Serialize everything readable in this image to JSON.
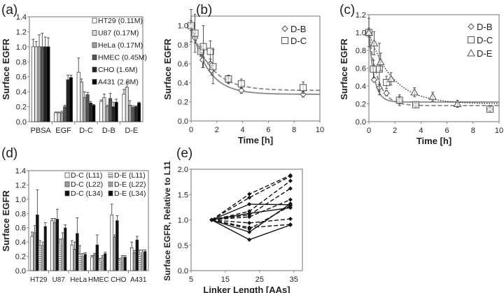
{
  "chart_data": [
    {
      "id": "a",
      "type": "bar",
      "panel_label": "(a)",
      "ylabel": "Surface EGFR",
      "ylim": [
        0,
        1.4
      ],
      "yticks": [
        "0.0",
        "0.2",
        "0.4",
        "0.6",
        "0.8",
        "1.0",
        "1.2",
        "1.4"
      ],
      "categories": [
        "PBSA",
        "EGF",
        "D-C",
        "D-B",
        "D-E"
      ],
      "series": [
        {
          "name": "HT29 (0.11M)",
          "color": "#ffffff",
          "values": [
            1.0,
            0.12,
            0.66,
            0.27,
            0.37
          ],
          "errors": [
            0.1,
            0.01,
            0.19,
            0.02,
            0.06
          ]
        },
        {
          "name": "U87 (0.17M)",
          "color": "#dcdcdc",
          "values": [
            1.0,
            0.12,
            0.53,
            0.32,
            0.46
          ],
          "errors": [
            0.07,
            0.01,
            0.04,
            0.05,
            0.07
          ]
        },
        {
          "name": "HeLa (0.17M)",
          "color": "#a0a0a0",
          "values": [
            1.0,
            0.12,
            0.32,
            0.2,
            0.22
          ],
          "errors": [
            0.16,
            0.02,
            0.08,
            0.02,
            0.06
          ]
        },
        {
          "name": "HMEC (0.45M)",
          "color": "#555555",
          "values": [
            1.0,
            0.2,
            0.36,
            0.31,
            0.19
          ],
          "errors": [
            0.18,
            0.02,
            0.03,
            0.07,
            0.02
          ]
        },
        {
          "name": "CHO (1.6M)",
          "color": "#222222",
          "values": [
            1.0,
            0.56,
            0.25,
            0.2,
            0.2
          ],
          "errors": [
            0.13,
            0.06,
            0.02,
            0.06,
            0.01
          ]
        },
        {
          "name": "A431 (2.8M)",
          "color": "#000000",
          "values": [
            1.0,
            0.59,
            0.22,
            0.26,
            0.25
          ],
          "errors": [
            0.12,
            0.03,
            0.01,
            0.04,
            0.01
          ]
        }
      ]
    },
    {
      "id": "b",
      "type": "scatter",
      "panel_label": "(b)",
      "xlabel": "Time [h]",
      "ylabel": "Surface EGFR",
      "xlim": [
        0,
        10
      ],
      "ylim": [
        0,
        1.1
      ],
      "xticks": [
        "0",
        "2",
        "4",
        "6",
        "8",
        "10"
      ],
      "yticks": [
        "0.0",
        "0.2",
        "0.4",
        "0.6",
        "0.8",
        "1.0"
      ],
      "series": [
        {
          "name": "D-B",
          "marker": "diamond",
          "x": [
            0,
            0.3,
            0.8,
            0.9,
            1.5,
            1.6,
            2.9,
            3.9,
            8.7
          ],
          "y": [
            1.0,
            0.87,
            0.74,
            0.64,
            0.6,
            0.53,
            0.43,
            0.32,
            0.28
          ],
          "errors": [
            0.05,
            0.05,
            0.05,
            0.08,
            0.05,
            0.05,
            0.04,
            0.03,
            0.03
          ],
          "fit": {
            "style": "solid",
            "plateau": 0.28,
            "tau": 1.3
          }
        },
        {
          "name": "D-C",
          "marker": "square",
          "x": [
            0,
            0.3,
            0.75,
            0.95,
            1.5,
            1.7,
            2.9,
            3.9,
            8.7
          ],
          "y": [
            1.0,
            0.92,
            0.73,
            0.78,
            0.73,
            0.57,
            0.44,
            0.39,
            0.35
          ],
          "errors": [
            0.17,
            0.2,
            0.05,
            0.22,
            0.11,
            0.18,
            0.04,
            0.05,
            0.06
          ],
          "fit": {
            "style": "dashed",
            "plateau": 0.32,
            "tau": 1.5
          }
        }
      ]
    },
    {
      "id": "c",
      "type": "scatter",
      "panel_label": "(c)",
      "xlabel": "Time [h]",
      "ylabel": "Surface EGFR",
      "xlim": [
        0,
        10
      ],
      "ylim": [
        0,
        1.2
      ],
      "xticks": [
        "0",
        "2",
        "4",
        "6",
        "8",
        "10"
      ],
      "yticks": [
        "0.0",
        "0.2",
        "0.4",
        "0.6",
        "0.8",
        "1.0",
        "1.2"
      ],
      "series": [
        {
          "name": "D-B",
          "marker": "diamond",
          "x": [
            0,
            0.4,
            0.8,
            1.35,
            2.35,
            3.6,
            9.3
          ],
          "y": [
            1.0,
            0.47,
            0.38,
            0.32,
            0.24,
            0.19,
            0.14
          ],
          "errors": [
            0.16,
            0.02,
            0.04,
            0.03,
            0.06,
            0.02,
            0.03
          ],
          "fit": {
            "style": "solid",
            "plateau": 0.22,
            "tau": 0.4
          }
        },
        {
          "name": "D-C",
          "marker": "square",
          "x": [
            0,
            0.35,
            0.8,
            1.35,
            2.35,
            3.6,
            9.3
          ],
          "y": [
            1.0,
            0.59,
            0.59,
            0.44,
            0.24,
            0.19,
            0.14
          ],
          "errors": [
            0.05,
            0.1,
            0.29,
            0.07,
            0.04,
            0.02,
            0.02
          ],
          "fit": {
            "style": "dashed",
            "plateau": 0.18,
            "tau": 0.7
          }
        },
        {
          "name": "D-E",
          "marker": "triangle",
          "x": [
            0,
            0.4,
            0.9,
            1.7,
            3.5,
            4.9,
            6.8
          ],
          "y": [
            1.0,
            0.88,
            0.67,
            0.48,
            0.33,
            0.28,
            0.2
          ],
          "errors": [
            0.03,
            0.13,
            0.1,
            0.07,
            0.05,
            0.05,
            0.04
          ],
          "fit": {
            "style": "dotted",
            "plateau": 0.2,
            "tau": 1.8
          }
        }
      ]
    },
    {
      "id": "d",
      "type": "bar",
      "panel_label": "(d)",
      "ylabel": "Surface EGFR",
      "ylim": [
        0,
        1.4
      ],
      "yticks": [
        "0.0",
        "0.2",
        "0.4",
        "0.6",
        "0.8",
        "1.0",
        "1.2",
        "1.4"
      ],
      "categories": [
        "HT29",
        "U87",
        "HeLa",
        "HMEC",
        "CHO",
        "A431"
      ],
      "series": [
        {
          "name": "D-C (L11)",
          "color": "#ffffff",
          "hatched": false,
          "values": [
            0.48,
            0.7,
            0.36,
            0.19,
            0.78,
            0.32
          ],
          "errors": [
            0.06,
            0.03,
            0.06,
            0.02,
            0.15,
            0.08
          ]
        },
        {
          "name": "D-C (L22)",
          "color": "#a0a0a0",
          "hatched": false,
          "values": [
            0.53,
            0.67,
            0.3,
            0.22,
            0.47,
            0.25
          ],
          "errors": [
            0.1,
            0.06,
            0.1,
            0.02,
            0.03,
            0.03
          ]
        },
        {
          "name": "D-C (L34)",
          "color": "#111111",
          "hatched": false,
          "values": [
            0.78,
            0.72,
            0.52,
            0.36,
            0.7,
            0.43
          ],
          "errors": [
            0.35,
            0.14,
            0.22,
            0.14,
            0.07,
            0.05
          ]
        },
        {
          "name": "D-E (L11)",
          "color": "#ffffff",
          "hatched": true,
          "values": [
            0.35,
            0.37,
            0.24,
            0.13,
            0.14,
            0.22
          ],
          "errors": [
            0.07,
            0.07,
            0.11,
            0.04,
            0.03,
            0.07
          ]
        },
        {
          "name": "D-E (L22)",
          "color": "#a0a0a0",
          "hatched": true,
          "values": [
            0.36,
            0.45,
            0.2,
            0.19,
            0.19,
            0.26
          ],
          "errors": [
            0.04,
            0.08,
            0.04,
            0.02,
            0.02,
            0.03
          ]
        },
        {
          "name": "D-E (L34)",
          "color": "#111111",
          "hatched": true,
          "values": [
            0.62,
            0.6,
            0.23,
            0.24,
            0.19,
            0.27
          ],
          "errors": [
            0.05,
            0.04,
            0.02,
            0.02,
            0.02,
            0.02
          ]
        }
      ]
    },
    {
      "id": "e",
      "type": "line",
      "panel_label": "(e)",
      "xlabel": "Linker Length [AAs]",
      "ylabel": "Surface EGFR, Relative to L11",
      "xlim": [
        5,
        37.5
      ],
      "ylim": [
        0,
        2.0
      ],
      "xticks": [
        5,
        15,
        25,
        35
      ],
      "yticks": [
        "0.0",
        "0.5",
        "1.0",
        "1.5",
        "2.0"
      ],
      "x": [
        11,
        22,
        34
      ],
      "series": [
        {
          "style": "solid",
          "y": [
            1,
            1.31,
            1.3
          ]
        },
        {
          "style": "solid",
          "y": [
            1,
            1.13,
            1.24
          ]
        },
        {
          "style": "solid",
          "y": [
            1,
            0.61,
            0.9
          ]
        },
        {
          "style": "solid",
          "y": [
            1,
            0.76,
            1.32
          ]
        },
        {
          "style": "dashed",
          "y": [
            1,
            1.51,
            1.88
          ]
        },
        {
          "style": "dashed",
          "y": [
            1,
            1.44,
            1.86
          ]
        },
        {
          "style": "dashed",
          "y": [
            1,
            1.17,
            1.77
          ]
        },
        {
          "style": "dashed",
          "y": [
            1,
            1.1,
            1.62
          ]
        },
        {
          "style": "dashed",
          "y": [
            1,
            1.06,
            1.4
          ]
        },
        {
          "style": "dashed",
          "y": [
            1,
            0.94,
            1.02
          ]
        },
        {
          "style": "dashed",
          "y": [
            1,
            0.85,
            0.91
          ]
        },
        {
          "style": "dashed",
          "y": [
            1,
            0.82,
            1.28
          ]
        }
      ]
    }
  ]
}
